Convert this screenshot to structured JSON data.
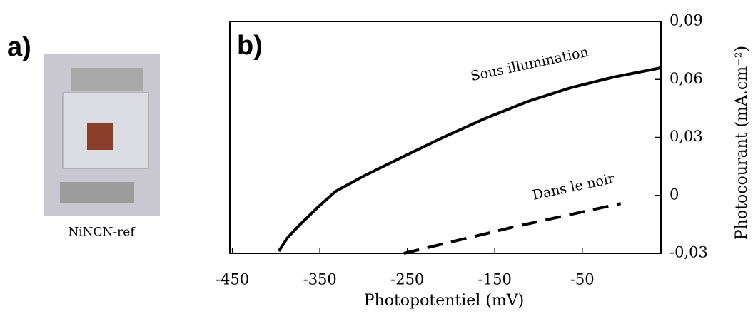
{
  "panel_a": {
    "label": "a)",
    "caption": "NiNCN-ref"
  },
  "chart_data": {
    "type": "line",
    "panel_label": "b)",
    "x_label": "Photopotentiel (mV)",
    "y_label": "Photocourant (mA.cm⁻²)",
    "xlim": [
      -453,
      40
    ],
    "xticks": [
      -450,
      -350,
      -250,
      -150,
      -50
    ],
    "ylim": [
      -0.03,
      0.09
    ],
    "yticks": [
      {
        "value": -0.03,
        "label": "-0,03"
      },
      0,
      {
        "value": 0.03,
        "label": "0,03"
      },
      {
        "value": 0.06,
        "label": "0,06"
      },
      {
        "value": 0.09,
        "label": "0,09"
      }
    ],
    "series": [
      {
        "name": "Sous illumination",
        "color": "#000000",
        "dash": false,
        "x": [
          -397,
          -387,
          -373,
          -352,
          -332,
          -299,
          -259,
          -210,
          -161,
          -112,
          -63,
          -14,
          40
        ],
        "values": [
          -0.0289,
          -0.0219,
          -0.0152,
          -0.006,
          0.0021,
          0.0102,
          0.0191,
          0.0298,
          0.0398,
          0.0486,
          0.0557,
          0.0612,
          0.066
        ]
      },
      {
        "name": "Dans le noir",
        "color": "#000000",
        "dash": true,
        "x": [
          -254,
          -128,
          -6
        ],
        "values": [
          -0.03,
          -0.0163,
          -0.0042
        ]
      }
    ]
  }
}
